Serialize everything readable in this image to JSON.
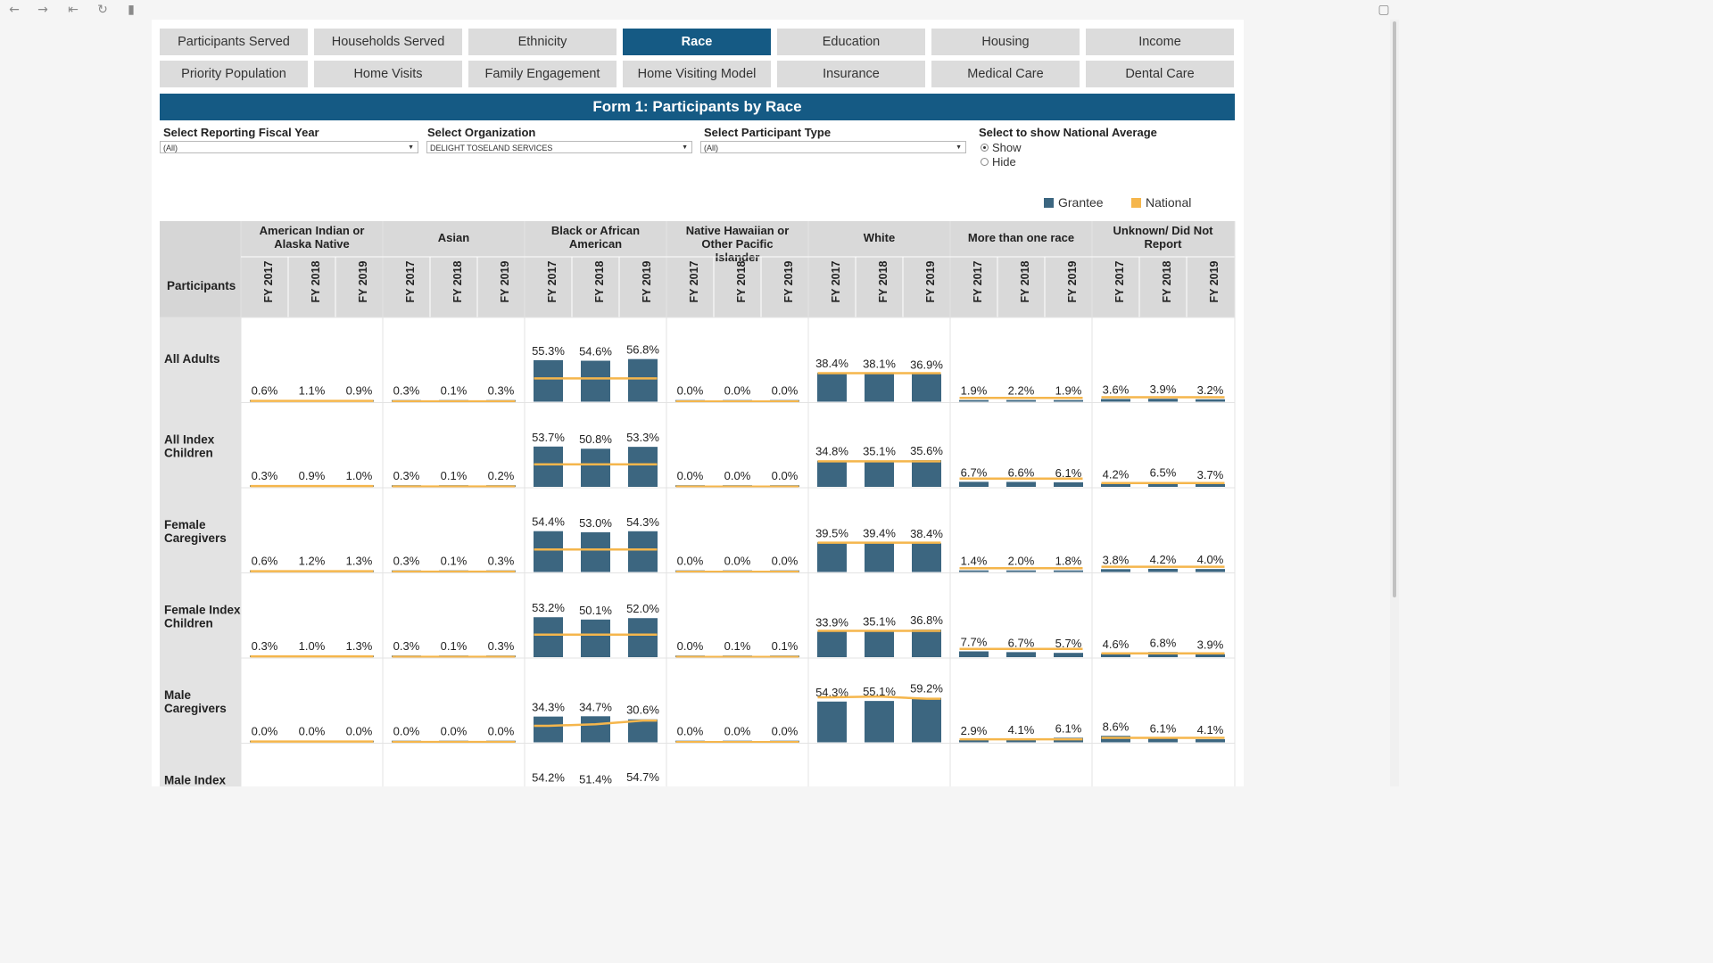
{
  "tabs_row1": [
    "Participants Served",
    "Households Served",
    "Ethnicity",
    "Race",
    "Education",
    "Housing",
    "Income"
  ],
  "tabs_row2": [
    "Priority Population",
    "Home Visits",
    "Family Engagement",
    "Home Visiting Model",
    "Insurance",
    "Medical Care",
    "Dental Care"
  ],
  "active_tab": "Race",
  "colors": {
    "grantee": "#3c6680",
    "national": "#f5b64c",
    "header_bg": "#155a84"
  },
  "filters": {
    "fiscal_year": {
      "label": "Select Reporting Fiscal Year",
      "value": "(All)"
    },
    "organization": {
      "label": "Select Organization",
      "value": "DELIGHT TOSELAND SERVICES"
    },
    "participant_type": {
      "label": "Select Participant Type",
      "value": "(All)"
    },
    "national_avg": {
      "label": "Select to show National Average",
      "options": [
        "Show",
        "Hide"
      ],
      "selected": "Show"
    }
  },
  "chart_data": {
    "type": "bar",
    "title": "Form 1: Participants by Race",
    "legend": [
      "Grantee",
      "National"
    ],
    "legend_position": "top-right",
    "row_header": "Participants",
    "years": [
      "FY 2017",
      "FY 2018",
      "FY 2019"
    ],
    "categories": [
      "American Indian or Alaska Native",
      "Asian",
      "Black or African American",
      "Native Hawaiian or Other Pacific Islander",
      "White",
      "More than one race",
      "Unknown/ Did Not Report"
    ],
    "rows": [
      {
        "label": "All Adults",
        "values": [
          [
            0.6,
            1.1,
            0.9
          ],
          [
            0.3,
            0.1,
            0.3
          ],
          [
            55.3,
            54.6,
            56.8
          ],
          [
            0.0,
            0.0,
            0.0
          ],
          [
            38.4,
            38.1,
            36.9
          ],
          [
            1.9,
            2.2,
            1.9
          ],
          [
            3.6,
            3.9,
            3.2
          ]
        ],
        "national": [
          [
            1.0,
            1.0,
            1.0
          ],
          [
            0.5,
            0.5,
            0.5
          ],
          [
            31,
            31,
            31
          ],
          [
            0.3,
            0.3,
            0.3
          ],
          [
            38,
            38,
            38
          ],
          [
            5,
            5,
            5
          ],
          [
            6,
            6,
            6
          ]
        ]
      },
      {
        "label": "All Index Children",
        "values": [
          [
            0.3,
            0.9,
            1.0
          ],
          [
            0.3,
            0.1,
            0.2
          ],
          [
            53.7,
            50.8,
            53.3
          ],
          [
            0.0,
            0.0,
            0.0
          ],
          [
            34.8,
            35.1,
            35.6
          ],
          [
            6.7,
            6.6,
            6.1
          ],
          [
            4.2,
            6.5,
            3.7
          ]
        ],
        "national": [
          [
            1.0,
            1.0,
            1.0
          ],
          [
            0.5,
            0.5,
            0.5
          ],
          [
            30,
            30,
            30
          ],
          [
            0.3,
            0.3,
            0.3
          ],
          [
            34,
            34,
            34
          ],
          [
            11,
            11,
            11
          ],
          [
            5,
            5,
            5
          ]
        ]
      },
      {
        "label": "Female Caregivers",
        "values": [
          [
            0.6,
            1.2,
            1.3
          ],
          [
            0.3,
            0.1,
            0.3
          ],
          [
            54.4,
            53.0,
            54.3
          ],
          [
            0.0,
            0.0,
            0.0
          ],
          [
            39.5,
            39.4,
            38.4
          ],
          [
            1.4,
            2.0,
            1.8
          ],
          [
            3.8,
            4.2,
            4.0
          ]
        ],
        "national": [
          [
            1.0,
            1.0,
            1.0
          ],
          [
            0.5,
            0.5,
            0.5
          ],
          [
            30,
            30,
            30
          ],
          [
            0.3,
            0.3,
            0.3
          ],
          [
            39,
            39,
            39
          ],
          [
            5,
            5,
            5
          ],
          [
            7,
            7,
            7
          ]
        ]
      },
      {
        "label": "Female Index Children",
        "values": [
          [
            0.3,
            1.0,
            1.3
          ],
          [
            0.3,
            0.1,
            0.3
          ],
          [
            53.2,
            50.1,
            52.0
          ],
          [
            0.0,
            0.1,
            0.1
          ],
          [
            33.9,
            35.1,
            36.8
          ],
          [
            7.7,
            6.7,
            5.7
          ],
          [
            4.6,
            6.8,
            3.9
          ]
        ],
        "national": [
          [
            1.0,
            1.0,
            1.0
          ],
          [
            0.5,
            0.5,
            0.5
          ],
          [
            30,
            30,
            30
          ],
          [
            0.3,
            0.3,
            0.3
          ],
          [
            35,
            35,
            35
          ],
          [
            11,
            11,
            11
          ],
          [
            5,
            5,
            5
          ]
        ]
      },
      {
        "label": "Male Caregivers",
        "values": [
          [
            0.0,
            0.0,
            0.0
          ],
          [
            0.0,
            0.0,
            0.0
          ],
          [
            34.3,
            34.7,
            30.6
          ],
          [
            0.0,
            0.0,
            0.0
          ],
          [
            54.3,
            55.1,
            59.2
          ],
          [
            2.9,
            4.1,
            6.1
          ],
          [
            8.6,
            6.1,
            4.1
          ]
        ],
        "national": [
          [
            1.0,
            1.0,
            1.0
          ],
          [
            0.5,
            0.5,
            0.5
          ],
          [
            22,
            24,
            29
          ],
          [
            0.3,
            0.3,
            0.3
          ],
          [
            60,
            61,
            58
          ],
          [
            4,
            4,
            4
          ],
          [
            6,
            6,
            6
          ]
        ]
      },
      {
        "label": "Male Index Children",
        "values": [
          [
            null,
            null,
            null
          ],
          [
            null,
            null,
            null
          ],
          [
            54.2,
            51.4,
            54.7
          ],
          [
            null,
            null,
            null
          ],
          [
            null,
            null,
            null
          ],
          [
            null,
            null,
            null
          ],
          [
            null,
            null,
            null
          ]
        ],
        "national": [
          [
            null,
            null,
            null
          ],
          [
            null,
            null,
            null
          ],
          [
            null,
            null,
            null
          ],
          [
            null,
            null,
            null
          ],
          [
            null,
            null,
            null
          ],
          [
            null,
            null,
            null
          ],
          [
            null,
            null,
            null
          ]
        ]
      }
    ]
  }
}
